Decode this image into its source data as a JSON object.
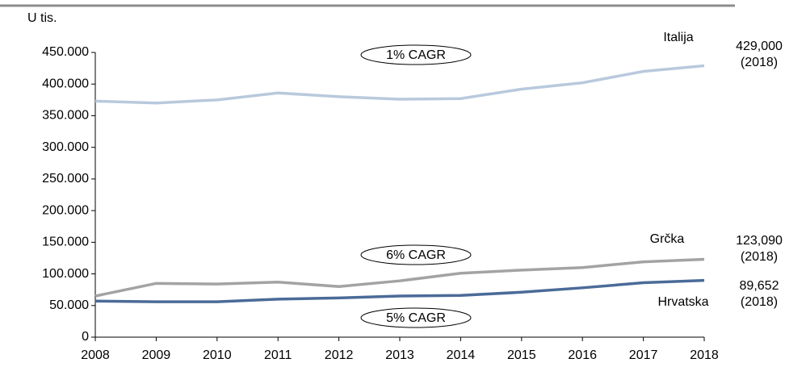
{
  "chart_data": {
    "type": "line",
    "y_label": "U tis.",
    "x": [
      2008,
      2009,
      2010,
      2011,
      2012,
      2013,
      2014,
      2015,
      2016,
      2017,
      2018
    ],
    "xlim": [
      2008,
      2018
    ],
    "xticks": [
      2008,
      2009,
      2010,
      2011,
      2012,
      2013,
      2014,
      2015,
      2016,
      2017,
      2018
    ],
    "ylim": [
      0,
      450000
    ],
    "yticks": [
      0,
      {
        "value": 50000,
        "label": "50.000"
      },
      {
        "value": 100000,
        "label": "100.000"
      },
      {
        "value": 150000,
        "label": "150.000"
      },
      {
        "value": 200000,
        "label": "200.000"
      },
      {
        "value": 250000,
        "label": "250.000"
      },
      {
        "value": 300000,
        "label": "300.000"
      },
      {
        "value": 350000,
        "label": "350.000"
      },
      {
        "value": 400000,
        "label": "400.000"
      },
      {
        "value": 450000,
        "label": "450.000"
      }
    ],
    "series": [
      {
        "name": "Italija",
        "color": "#b9c9dd",
        "values": [
          373000,
          370000,
          375000,
          386000,
          380000,
          376000,
          377000,
          392000,
          402000,
          420000,
          429000
        ],
        "value_labels": [
          null,
          null,
          null,
          null,
          null,
          null,
          null,
          null,
          null,
          null,
          "429,000"
        ],
        "note": "(2018)",
        "cagr": "1% CAGR"
      },
      {
        "name": "Grčka",
        "color": "#a3a3a3",
        "values": [
          65000,
          85000,
          84000,
          87000,
          80000,
          89000,
          101000,
          106000,
          110000,
          119000,
          123090
        ],
        "value_labels": [
          null,
          null,
          null,
          null,
          null,
          null,
          null,
          null,
          null,
          null,
          "123,090"
        ],
        "note": "(2018)",
        "cagr": "6% CAGR"
      },
      {
        "name": "Hrvatska",
        "color": "#4b6b98",
        "values": [
          57000,
          56000,
          56000,
          60000,
          62000,
          65000,
          66000,
          71000,
          78000,
          86000,
          89652
        ],
        "value_labels": [
          null,
          null,
          null,
          null,
          null,
          null,
          null,
          null,
          null,
          null,
          "89,652"
        ],
        "note": "(2018)",
        "cagr": "5% CAGR"
      }
    ]
  }
}
